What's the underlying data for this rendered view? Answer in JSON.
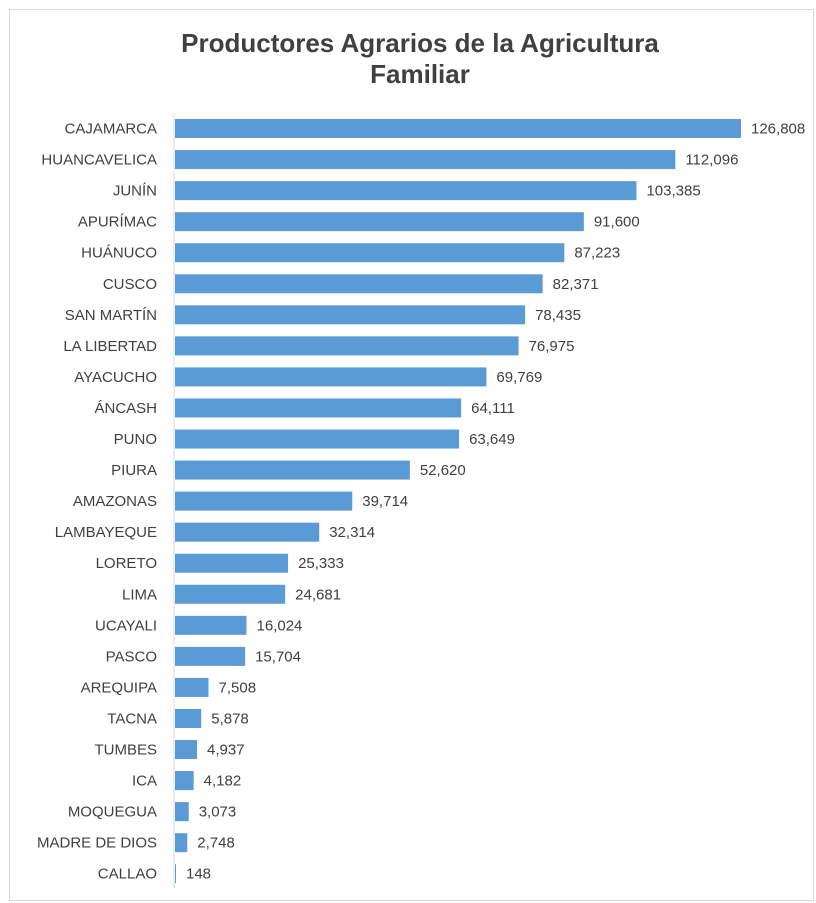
{
  "chart_data": {
    "type": "bar",
    "orientation": "horizontal",
    "title": "Productores Agrarios de la Agricultura Familiar",
    "title_lines": [
      "Productores Agrarios de la Agricultura",
      "Familiar"
    ],
    "xlabel": "",
    "ylabel": "",
    "categories": [
      "CAJAMARCA",
      "HUANCAVELICA",
      "JUNÍN",
      "APURÍMAC",
      "HUÁNUCO",
      "CUSCO",
      "SAN MARTÍN",
      "LA LIBERTAD",
      "AYACUCHO",
      "ÁNCASH",
      "PUNO",
      "PIURA",
      "AMAZONAS",
      "LAMBAYEQUE",
      "LORETO",
      "LIMA",
      "UCAYALI",
      "PASCO",
      "AREQUIPA",
      "TACNA",
      "TUMBES",
      "ICA",
      "MOQUEGUA",
      "MADRE DE DIOS",
      "CALLAO"
    ],
    "values": [
      126808,
      112096,
      103385,
      91600,
      87223,
      82371,
      78435,
      76975,
      69769,
      64111,
      63649,
      52620,
      39714,
      32314,
      25333,
      24681,
      16024,
      15704,
      7508,
      5878,
      4937,
      4182,
      3073,
      2748,
      148
    ],
    "value_labels": [
      "126,808",
      "112,096",
      "103,385",
      "91,600",
      "87,223",
      "82,371",
      "78,435",
      "76,975",
      "69,769",
      "64,111",
      "63,649",
      "52,620",
      "39,714",
      "32,314",
      "25,333",
      "24,681",
      "16,024",
      "15,704",
      "7,508",
      "5,878",
      "4,937",
      "4,182",
      "3,073",
      "2,748",
      "148"
    ],
    "xlim": [
      0,
      126808
    ],
    "grid": false,
    "legend": "none",
    "bar_color": "#5b9bd5"
  }
}
